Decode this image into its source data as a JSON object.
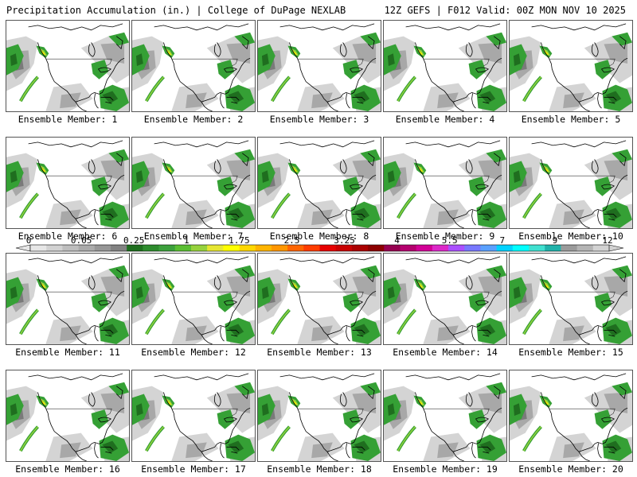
{
  "header": {
    "title": "Precipitation Accumulation (in.) | College of DuPage NEXLAB",
    "run_info": "12Z GEFS | F012 Valid: 00Z MON NOV 10 2025"
  },
  "caption_prefix": "Ensemble Member: ",
  "members": [
    {
      "label": "Ensemble Member: 1"
    },
    {
      "label": "Ensemble Member: 2"
    },
    {
      "label": "Ensemble Member: 3"
    },
    {
      "label": "Ensemble Member: 4"
    },
    {
      "label": "Ensemble Member: 5"
    },
    {
      "label": "Ensemble Member: 6"
    },
    {
      "label": "Ensemble Member: 7"
    },
    {
      "label": "Ensemble Member: 8"
    },
    {
      "label": "Ensemble Member: 9"
    },
    {
      "label": "Ensemble Member: 10"
    },
    {
      "label": "Ensemble Member: 11"
    },
    {
      "label": "Ensemble Member: 12"
    },
    {
      "label": "Ensemble Member: 13"
    },
    {
      "label": "Ensemble Member: 14"
    },
    {
      "label": "Ensemble Member: 15"
    },
    {
      "label": "Ensemble Member: 16"
    },
    {
      "label": "Ensemble Member: 17"
    },
    {
      "label": "Ensemble Member: 18"
    },
    {
      "label": "Ensemble Member: 19"
    },
    {
      "label": "Ensemble Member: 20"
    }
  ],
  "legend": {
    "tick_labels": [
      "0",
      "0.05",
      "0.25",
      "1",
      "1.75",
      "2.5",
      "3.25",
      "4",
      "5.5",
      "7",
      "9",
      "12"
    ],
    "colors": [
      "#e6e6e6",
      "#d2d2d2",
      "#bebebe",
      "#aaaaaa",
      "#969696",
      "#828282",
      "#1e6e1e",
      "#2d8c2d",
      "#3ca03c",
      "#5abe32",
      "#96d23c",
      "#e6e632",
      "#ffff00",
      "#ffd700",
      "#ffb400",
      "#ff9600",
      "#ff6400",
      "#ff3c00",
      "#e60000",
      "#c80000",
      "#aa0000",
      "#8c0000",
      "#960050",
      "#b4006e",
      "#d20096",
      "#dc28c8",
      "#aa50ff",
      "#7878ff",
      "#5aa0ff",
      "#00d2ff",
      "#00ffff",
      "#40e0d0",
      "#20b2aa",
      "#9a9a9a",
      "#b4b4b4",
      "#d2d2d2"
    ],
    "palette": {
      "light_gray": "#d4d4d4",
      "mid_gray": "#a8a8a8",
      "dark_gray": "#7a7a7a",
      "dark_green": "#1f6e1f",
      "green": "#35a035",
      "light_green": "#96d23c",
      "yellow": "#f0f000"
    }
  }
}
